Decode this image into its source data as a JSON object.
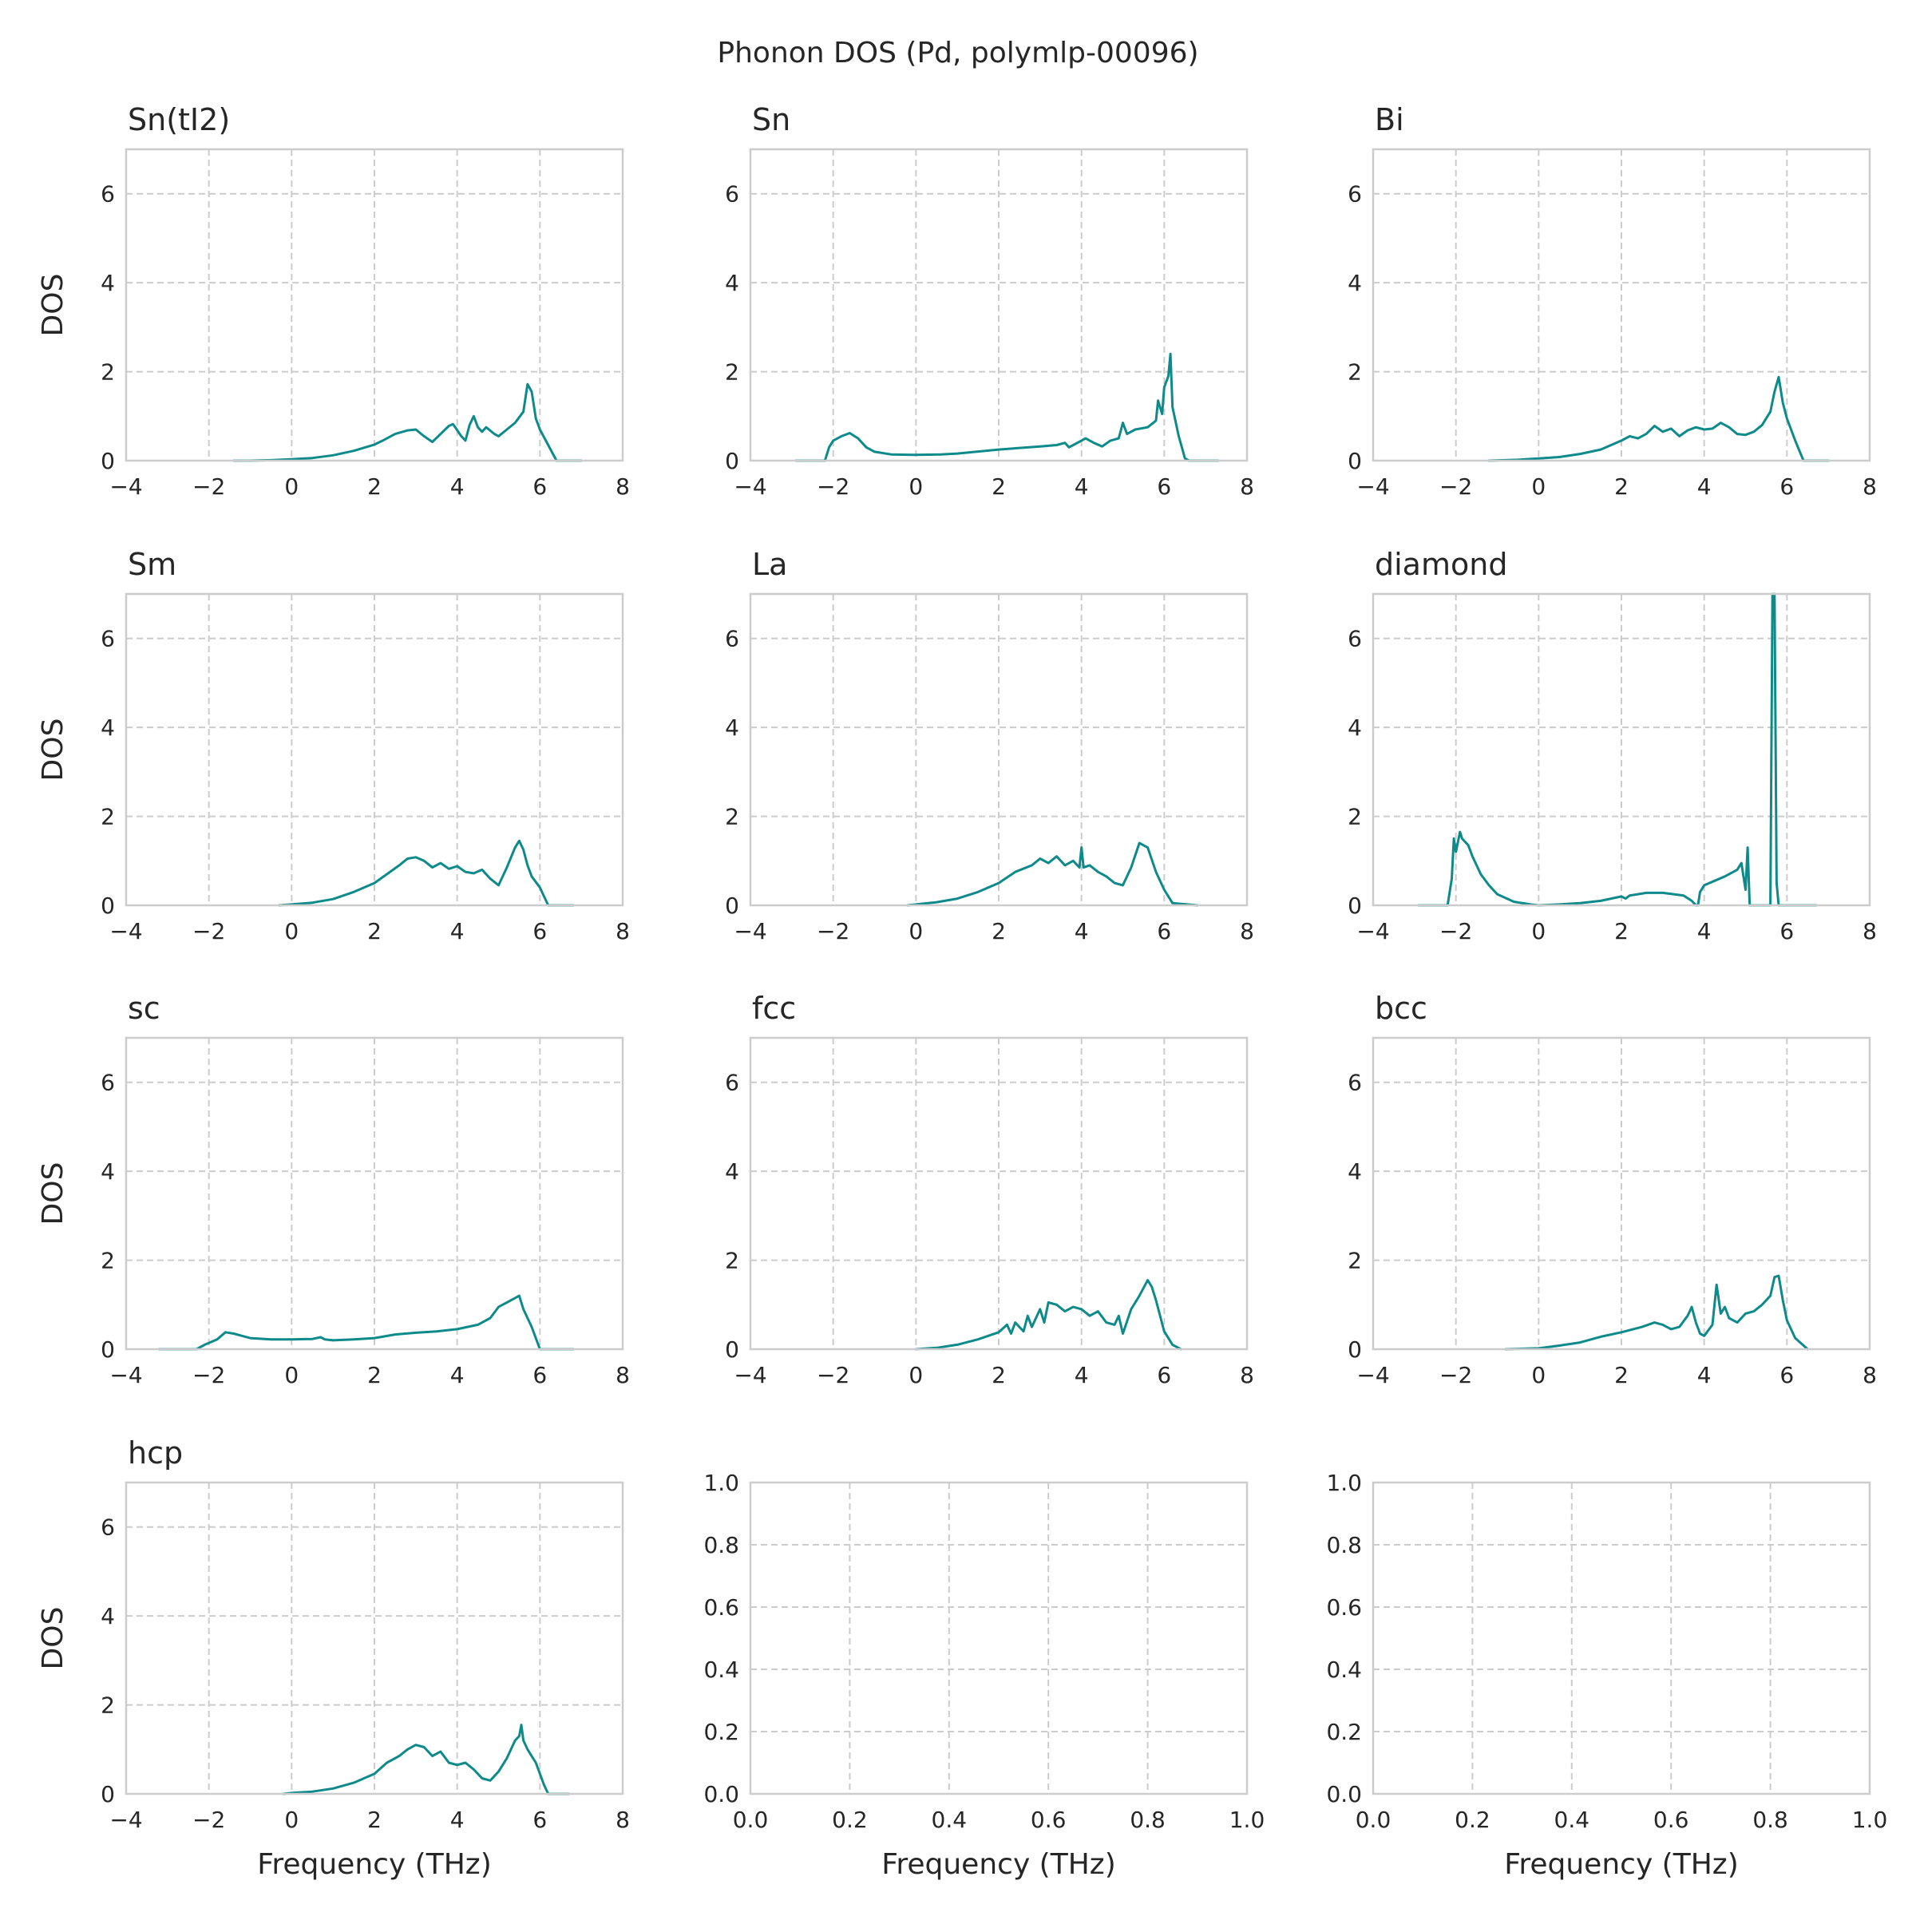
{
  "suptitle": "Phonon DOS (Pd, polymlp-00096)",
  "colors": {
    "line": "#0e8a8a",
    "grid": "#cccccc",
    "text": "#262626"
  },
  "chart_data": [
    {
      "type": "line",
      "title": "Sn(tI2)",
      "xlabel": "",
      "ylabel": "DOS",
      "xlim": [
        -4,
        8
      ],
      "ylim": [
        0,
        7
      ],
      "xticks": [
        "−4",
        "−2",
        "0",
        "2",
        "4",
        "6",
        "8"
      ],
      "yticks": [
        "0",
        "2",
        "4",
        "6"
      ],
      "x": [
        -1.4,
        -1,
        -0.5,
        0,
        0.5,
        1,
        1.5,
        2,
        2.2,
        2.5,
        2.8,
        3,
        3.2,
        3.4,
        3.6,
        3.8,
        3.9,
        4.1,
        4.2,
        4.3,
        4.4,
        4.5,
        4.6,
        4.7,
        4.9,
        5,
        5.2,
        5.4,
        5.6,
        5.7,
        5.8,
        5.9,
        6,
        6.2,
        6.4,
        6.6,
        7
      ],
      "y": [
        0,
        0,
        0.01,
        0.03,
        0.06,
        0.12,
        0.22,
        0.36,
        0.45,
        0.6,
        0.68,
        0.7,
        0.55,
        0.42,
        0.6,
        0.78,
        0.82,
        0.55,
        0.45,
        0.8,
        1.0,
        0.75,
        0.65,
        0.75,
        0.6,
        0.55,
        0.7,
        0.85,
        1.1,
        1.72,
        1.55,
        0.95,
        0.7,
        0.35,
        0,
        0,
        0
      ]
    },
    {
      "type": "line",
      "title": "Sn",
      "xlabel": "",
      "ylabel": "",
      "xlim": [
        -4,
        8
      ],
      "ylim": [
        0,
        7
      ],
      "xticks": [
        "−4",
        "−2",
        "0",
        "2",
        "4",
        "6",
        "8"
      ],
      "yticks": [
        "0",
        "2",
        "4",
        "6"
      ],
      "x": [
        -2.9,
        -2.2,
        -2.1,
        -2,
        -1.8,
        -1.6,
        -1.4,
        -1.2,
        -1,
        -0.6,
        0,
        0.6,
        1,
        2,
        3,
        3.4,
        3.6,
        3.7,
        3.8,
        4,
        4.1,
        4.3,
        4.5,
        4.7,
        4.9,
        5,
        5.1,
        5.3,
        5.6,
        5.8,
        5.85,
        5.95,
        6,
        6.1,
        6.15,
        6.2,
        6.35,
        6.5,
        6.6,
        7.3
      ],
      "y": [
        0,
        0,
        0.3,
        0.45,
        0.55,
        0.62,
        0.5,
        0.3,
        0.2,
        0.14,
        0.13,
        0.14,
        0.16,
        0.25,
        0.32,
        0.35,
        0.4,
        0.3,
        0.35,
        0.45,
        0.5,
        0.4,
        0.32,
        0.45,
        0.5,
        0.85,
        0.6,
        0.7,
        0.75,
        0.9,
        1.35,
        1.05,
        1.65,
        1.9,
        2.4,
        1.2,
        0.55,
        0.05,
        0,
        0
      ]
    },
    {
      "type": "line",
      "title": "Bi",
      "xlabel": "",
      "ylabel": "",
      "xlim": [
        -4,
        8
      ],
      "ylim": [
        0,
        7
      ],
      "xticks": [
        "−4",
        "−2",
        "0",
        "2",
        "4",
        "6",
        "8"
      ],
      "yticks": [
        "0",
        "2",
        "4",
        "6"
      ],
      "x": [
        -1.2,
        -0.5,
        0,
        0.5,
        1,
        1.5,
        2,
        2.2,
        2.4,
        2.6,
        2.8,
        3,
        3.2,
        3.4,
        3.6,
        3.8,
        4,
        4.2,
        4.4,
        4.6,
        4.8,
        5,
        5.2,
        5.4,
        5.6,
        5.7,
        5.8,
        5.9,
        6,
        6.2,
        6.4,
        7
      ],
      "y": [
        0,
        0.02,
        0.05,
        0.08,
        0.15,
        0.25,
        0.45,
        0.55,
        0.5,
        0.6,
        0.78,
        0.65,
        0.72,
        0.55,
        0.68,
        0.75,
        0.7,
        0.72,
        0.85,
        0.75,
        0.6,
        0.58,
        0.65,
        0.8,
        1.1,
        1.55,
        1.88,
        1.3,
        0.95,
        0.45,
        0,
        0
      ]
    },
    {
      "type": "line",
      "title": "Sm",
      "xlabel": "",
      "ylabel": "DOS",
      "xlim": [
        -4,
        8
      ],
      "ylim": [
        0,
        7
      ],
      "xticks": [
        "−4",
        "−2",
        "0",
        "2",
        "4",
        "6",
        "8"
      ],
      "yticks": [
        "0",
        "2",
        "4",
        "6"
      ],
      "x": [
        -0.3,
        0,
        0.5,
        1,
        1.5,
        2,
        2.3,
        2.6,
        2.8,
        3,
        3.2,
        3.4,
        3.6,
        3.8,
        4,
        4.2,
        4.4,
        4.6,
        4.8,
        5,
        5.2,
        5.4,
        5.5,
        5.6,
        5.7,
        5.8,
        6,
        6.1,
        6.2,
        6.8
      ],
      "y": [
        0,
        0.02,
        0.06,
        0.14,
        0.3,
        0.5,
        0.7,
        0.9,
        1.05,
        1.08,
        1.0,
        0.85,
        0.95,
        0.82,
        0.88,
        0.75,
        0.72,
        0.8,
        0.6,
        0.45,
        0.85,
        1.3,
        1.45,
        1.25,
        0.9,
        0.65,
        0.4,
        0.2,
        0,
        0
      ]
    },
    {
      "type": "line",
      "title": "La",
      "xlabel": "",
      "ylabel": "",
      "xlim": [
        -4,
        8
      ],
      "ylim": [
        0,
        7
      ],
      "xticks": [
        "−4",
        "−2",
        "0",
        "2",
        "4",
        "6",
        "8"
      ],
      "yticks": [
        "0",
        "2",
        "4",
        "6"
      ],
      "x": [
        -0.2,
        0,
        0.5,
        1,
        1.5,
        2,
        2.4,
        2.8,
        3,
        3.2,
        3.4,
        3.6,
        3.8,
        3.95,
        4,
        4.05,
        4.2,
        4.4,
        4.6,
        4.8,
        5,
        5.2,
        5.4,
        5.5,
        5.6,
        5.8,
        6,
        6.2,
        6.8
      ],
      "y": [
        0,
        0.02,
        0.07,
        0.15,
        0.3,
        0.5,
        0.75,
        0.9,
        1.05,
        0.95,
        1.1,
        0.9,
        1.0,
        0.85,
        1.3,
        0.85,
        0.9,
        0.75,
        0.65,
        0.5,
        0.45,
        0.85,
        1.4,
        1.35,
        1.3,
        0.75,
        0.35,
        0.05,
        0
      ]
    },
    {
      "type": "line",
      "title": "diamond",
      "xlabel": "",
      "ylabel": "",
      "xlim": [
        -4,
        8
      ],
      "ylim": [
        0,
        7
      ],
      "xticks": [
        "−4",
        "−2",
        "0",
        "2",
        "4",
        "6",
        "8"
      ],
      "yticks": [
        "0",
        "2",
        "4",
        "6"
      ],
      "x": [
        -2.9,
        -2.2,
        -2.1,
        -2.05,
        -2,
        -1.9,
        -1.85,
        -1.7,
        -1.6,
        -1.5,
        -1.4,
        -1.2,
        -1,
        -0.6,
        -0.2,
        0,
        0.5,
        1,
        1.5,
        2,
        2.1,
        2.2,
        2.4,
        2.6,
        3,
        3.5,
        3.7,
        3.8,
        3.85,
        3.9,
        4,
        4.5,
        4.8,
        4.9,
        5,
        5.05,
        5.1,
        5.6,
        5.65,
        5.7,
        5.75,
        5.8,
        6,
        6.7
      ],
      "y": [
        0,
        0,
        0.6,
        1.5,
        1.2,
        1.65,
        1.5,
        1.35,
        1.1,
        0.9,
        0.7,
        0.45,
        0.25,
        0.08,
        0.02,
        0,
        0.02,
        0.05,
        0.1,
        0.2,
        0.15,
        0.22,
        0.25,
        0.28,
        0.28,
        0.22,
        0.1,
        0,
        0,
        0.3,
        0.45,
        0.65,
        0.8,
        0.95,
        0.35,
        1.3,
        0,
        0,
        7.0,
        7.0,
        0.5,
        0,
        0,
        0
      ]
    },
    {
      "type": "line",
      "title": "sc",
      "xlabel": "",
      "ylabel": "DOS",
      "xlim": [
        -4,
        8
      ],
      "ylim": [
        0,
        7
      ],
      "xticks": [
        "−4",
        "−2",
        "0",
        "2",
        "4",
        "6",
        "8"
      ],
      "yticks": [
        "0",
        "2",
        "4",
        "6"
      ],
      "x": [
        -3.2,
        -2.3,
        -2.1,
        -1.8,
        -1.6,
        -1.4,
        -1.2,
        -1,
        -0.5,
        0,
        0.5,
        0.7,
        0.8,
        1,
        1.5,
        2,
        2.5,
        3,
        3.5,
        4,
        4.5,
        4.8,
        5,
        5.2,
        5.4,
        5.5,
        5.6,
        5.8,
        6,
        6.8
      ],
      "y": [
        0,
        0,
        0.1,
        0.22,
        0.38,
        0.35,
        0.3,
        0.25,
        0.22,
        0.22,
        0.23,
        0.27,
        0.22,
        0.2,
        0.22,
        0.25,
        0.33,
        0.37,
        0.4,
        0.45,
        0.55,
        0.7,
        0.95,
        1.05,
        1.15,
        1.2,
        0.9,
        0.5,
        0,
        0
      ]
    },
    {
      "type": "line",
      "title": "fcc",
      "xlabel": "",
      "ylabel": "",
      "xlim": [
        -4,
        8
      ],
      "ylim": [
        0,
        7
      ],
      "xticks": [
        "−4",
        "−2",
        "0",
        "2",
        "4",
        "6",
        "8"
      ],
      "yticks": [
        "0",
        "2",
        "4",
        "6"
      ],
      "x": [
        0,
        0.5,
        1,
        1.5,
        2,
        2.2,
        2.3,
        2.4,
        2.6,
        2.7,
        2.8,
        3,
        3.1,
        3.2,
        3.4,
        3.6,
        3.8,
        4,
        4.2,
        4.4,
        4.6,
        4.8,
        4.9,
        5,
        5.2,
        5.4,
        5.6,
        5.7,
        5.8,
        6,
        6.2,
        6.4
      ],
      "y": [
        0,
        0.03,
        0.1,
        0.22,
        0.38,
        0.55,
        0.35,
        0.6,
        0.4,
        0.75,
        0.5,
        0.9,
        0.6,
        1.05,
        1.0,
        0.85,
        0.95,
        0.9,
        0.75,
        0.85,
        0.6,
        0.55,
        0.75,
        0.35,
        0.9,
        1.2,
        1.55,
        1.4,
        1.1,
        0.4,
        0.1,
        0
      ]
    },
    {
      "type": "line",
      "title": "bcc",
      "xlabel": "",
      "ylabel": "",
      "xlim": [
        -4,
        8
      ],
      "ylim": [
        0,
        7
      ],
      "xticks": [
        "−4",
        "−2",
        "0",
        "2",
        "4",
        "6",
        "8"
      ],
      "yticks": [
        "0",
        "2",
        "4",
        "6"
      ],
      "x": [
        -0.8,
        0,
        0.5,
        1,
        1.5,
        2,
        2.5,
        2.8,
        3,
        3.2,
        3.4,
        3.6,
        3.7,
        3.8,
        3.9,
        4,
        4.2,
        4.3,
        4.4,
        4.5,
        4.6,
        4.8,
        5,
        5.2,
        5.4,
        5.6,
        5.7,
        5.8,
        5.9,
        6,
        6.2,
        6.5
      ],
      "y": [
        0,
        0.02,
        0.08,
        0.15,
        0.28,
        0.38,
        0.5,
        0.6,
        0.55,
        0.45,
        0.5,
        0.75,
        0.95,
        0.6,
        0.35,
        0.3,
        0.55,
        1.45,
        0.8,
        0.95,
        0.7,
        0.6,
        0.8,
        0.85,
        1.0,
        1.2,
        1.62,
        1.65,
        1.1,
        0.65,
        0.25,
        0
      ]
    },
    {
      "type": "line",
      "title": "hcp",
      "xlabel": "Frequency (THz)",
      "ylabel": "DOS",
      "xlim": [
        -4,
        8
      ],
      "ylim": [
        0,
        7
      ],
      "xticks": [
        "−4",
        "−2",
        "0",
        "2",
        "4",
        "6",
        "8"
      ],
      "yticks": [
        "0",
        "2",
        "4",
        "6"
      ],
      "x": [
        -0.2,
        0,
        0.5,
        1,
        1.5,
        2,
        2.3,
        2.6,
        2.8,
        3,
        3.2,
        3.4,
        3.6,
        3.8,
        4,
        4.2,
        4.4,
        4.6,
        4.8,
        5,
        5.2,
        5.4,
        5.5,
        5.55,
        5.6,
        5.7,
        5.9,
        6.1,
        6.2,
        6.7
      ],
      "y": [
        0,
        0.02,
        0.05,
        0.12,
        0.25,
        0.45,
        0.7,
        0.85,
        1.0,
        1.1,
        1.05,
        0.85,
        0.95,
        0.7,
        0.65,
        0.7,
        0.55,
        0.35,
        0.3,
        0.5,
        0.8,
        1.2,
        1.3,
        1.55,
        1.2,
        1.0,
        0.7,
        0.2,
        0,
        0
      ]
    },
    {
      "type": "line",
      "title": "",
      "xlabel": "Frequency (THz)",
      "ylabel": "",
      "xlim": [
        0,
        1
      ],
      "ylim": [
        0,
        1
      ],
      "xticks": [
        "0.0",
        "0.2",
        "0.4",
        "0.6",
        "0.8",
        "1.0"
      ],
      "yticks": [
        "0.0",
        "0.2",
        "0.4",
        "0.6",
        "0.8",
        "1.0"
      ],
      "x": [],
      "y": []
    },
    {
      "type": "line",
      "title": "",
      "xlabel": "Frequency (THz)",
      "ylabel": "",
      "xlim": [
        0,
        1
      ],
      "ylim": [
        0,
        1
      ],
      "xticks": [
        "0.0",
        "0.2",
        "0.4",
        "0.6",
        "0.8",
        "1.0"
      ],
      "yticks": [
        "0.0",
        "0.2",
        "0.4",
        "0.6",
        "0.8",
        "1.0"
      ],
      "x": [],
      "y": []
    }
  ]
}
